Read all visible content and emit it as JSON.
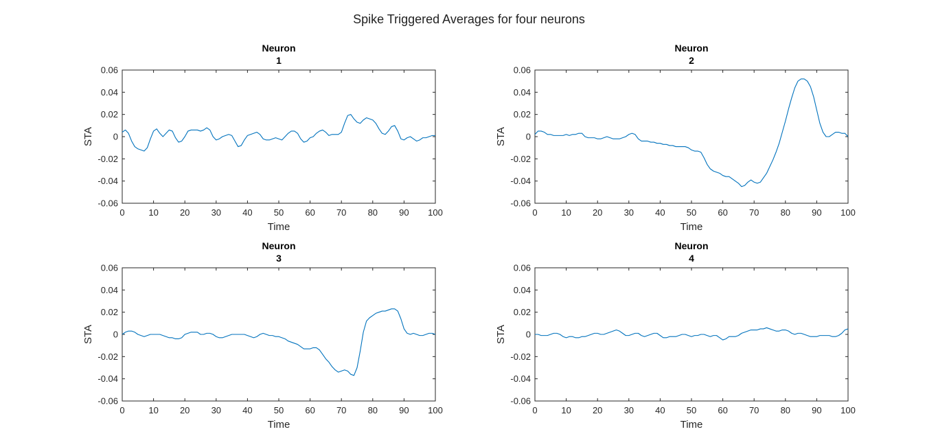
{
  "figure": {
    "title": "Spike Triggered Averages for four neurons"
  },
  "colors": {
    "line": "#0072BD",
    "axis": "#262626",
    "text": "#262626",
    "background": "#ffffff"
  },
  "chart_data": [
    {
      "type": "line",
      "title": [
        "Neuron",
        "1"
      ],
      "xlabel": "Time",
      "ylabel": "STA",
      "xlim": [
        0,
        100
      ],
      "ylim": [
        -0.06,
        0.06
      ],
      "xticks": [
        0,
        10,
        20,
        30,
        40,
        50,
        60,
        70,
        80,
        90,
        100
      ],
      "yticks": [
        -0.06,
        -0.04,
        -0.02,
        0,
        0.02,
        0.04,
        0.06
      ],
      "ytick_labels": [
        "-0.06",
        "-0.04",
        "-0.02",
        "0",
        "0.02",
        "0.04",
        "0.06"
      ],
      "grid": false,
      "series": [
        {
          "x": [
            0,
            1,
            2,
            3,
            4,
            5,
            6,
            7,
            8,
            9,
            10,
            11,
            12,
            13,
            14,
            15,
            16,
            17,
            18,
            19,
            20,
            21,
            22,
            23,
            24,
            25,
            26,
            27,
            28,
            29,
            30,
            31,
            32,
            33,
            34,
            35,
            36,
            37,
            38,
            39,
            40,
            41,
            42,
            43,
            44,
            45,
            46,
            47,
            48,
            49,
            50,
            51,
            52,
            53,
            54,
            55,
            56,
            57,
            58,
            59,
            60,
            61,
            62,
            63,
            64,
            65,
            66,
            67,
            68,
            69,
            70,
            71,
            72,
            73,
            74,
            75,
            76,
            77,
            78,
            79,
            80,
            81,
            82,
            83,
            84,
            85,
            86,
            87,
            88,
            89,
            90,
            91,
            92,
            93,
            94,
            95,
            96,
            97,
            98,
            99,
            100
          ],
          "y": [
            0.004,
            0.006,
            0.003,
            -0.004,
            -0.009,
            -0.011,
            -0.012,
            -0.013,
            -0.01,
            -0.002,
            0.005,
            0.007,
            0.003,
            0.0,
            0.003,
            0.006,
            0.005,
            -0.001,
            -0.005,
            -0.004,
            0.0,
            0.005,
            0.006,
            0.006,
            0.006,
            0.005,
            0.006,
            0.008,
            0.006,
            0.0,
            -0.003,
            -0.002,
            0.0,
            0.001,
            0.002,
            0.001,
            -0.004,
            -0.009,
            -0.008,
            -0.003,
            0.001,
            0.002,
            0.003,
            0.004,
            0.002,
            -0.002,
            -0.003,
            -0.003,
            -0.002,
            -0.001,
            -0.002,
            -0.003,
            0.0,
            0.003,
            0.005,
            0.005,
            0.003,
            -0.002,
            -0.005,
            -0.004,
            -0.001,
            0.0,
            0.003,
            0.005,
            0.006,
            0.004,
            0.001,
            0.002,
            0.002,
            0.002,
            0.004,
            0.012,
            0.019,
            0.02,
            0.016,
            0.013,
            0.012,
            0.015,
            0.017,
            0.016,
            0.015,
            0.012,
            0.007,
            0.003,
            0.002,
            0.005,
            0.009,
            0.01,
            0.005,
            -0.002,
            -0.003,
            -0.001,
            0.0,
            -0.002,
            -0.004,
            -0.003,
            -0.001,
            -0.001,
            0.0,
            0.001,
            0.001
          ]
        }
      ]
    },
    {
      "type": "line",
      "title": [
        "Neuron",
        "2"
      ],
      "xlabel": "Time",
      "ylabel": "STA",
      "xlim": [
        0,
        100
      ],
      "ylim": [
        -0.06,
        0.06
      ],
      "xticks": [
        0,
        10,
        20,
        30,
        40,
        50,
        60,
        70,
        80,
        90,
        100
      ],
      "yticks": [
        -0.06,
        -0.04,
        -0.02,
        0,
        0.02,
        0.04,
        0.06
      ],
      "ytick_labels": [
        "-0.06",
        "-0.04",
        "-0.02",
        "0",
        "0.02",
        "0.04",
        "0.06"
      ],
      "grid": false,
      "series": [
        {
          "x": [
            0,
            1,
            2,
            3,
            4,
            5,
            6,
            7,
            8,
            9,
            10,
            11,
            12,
            13,
            14,
            15,
            16,
            17,
            18,
            19,
            20,
            21,
            22,
            23,
            24,
            25,
            26,
            27,
            28,
            29,
            30,
            31,
            32,
            33,
            34,
            35,
            36,
            37,
            38,
            39,
            40,
            41,
            42,
            43,
            44,
            45,
            46,
            47,
            48,
            49,
            50,
            51,
            52,
            53,
            54,
            55,
            56,
            57,
            58,
            59,
            60,
            61,
            62,
            63,
            64,
            65,
            66,
            67,
            68,
            69,
            70,
            71,
            72,
            73,
            74,
            75,
            76,
            77,
            78,
            79,
            80,
            81,
            82,
            83,
            84,
            85,
            86,
            87,
            88,
            89,
            90,
            91,
            92,
            93,
            94,
            95,
            96,
            97,
            98,
            99,
            100
          ],
          "y": [
            0.002,
            0.005,
            0.005,
            0.004,
            0.002,
            0.002,
            0.001,
            0.001,
            0.001,
            0.001,
            0.002,
            0.001,
            0.002,
            0.002,
            0.003,
            0.003,
            0.0,
            -0.001,
            -0.001,
            -0.001,
            -0.002,
            -0.002,
            -0.001,
            0.0,
            -0.001,
            -0.002,
            -0.002,
            -0.002,
            -0.001,
            0.0,
            0.002,
            0.003,
            0.002,
            -0.002,
            -0.004,
            -0.004,
            -0.004,
            -0.005,
            -0.005,
            -0.006,
            -0.006,
            -0.007,
            -0.007,
            -0.008,
            -0.008,
            -0.009,
            -0.009,
            -0.009,
            -0.009,
            -0.01,
            -0.012,
            -0.013,
            -0.013,
            -0.014,
            -0.019,
            -0.025,
            -0.029,
            -0.031,
            -0.032,
            -0.033,
            -0.035,
            -0.036,
            -0.036,
            -0.038,
            -0.04,
            -0.042,
            -0.045,
            -0.044,
            -0.041,
            -0.039,
            -0.041,
            -0.042,
            -0.041,
            -0.037,
            -0.033,
            -0.027,
            -0.021,
            -0.014,
            -0.006,
            0.004,
            0.014,
            0.025,
            0.035,
            0.044,
            0.05,
            0.052,
            0.052,
            0.05,
            0.045,
            0.036,
            0.024,
            0.012,
            0.004,
            0.0,
            0.0,
            0.002,
            0.004,
            0.004,
            0.003,
            0.003,
            0.0
          ]
        }
      ]
    },
    {
      "type": "line",
      "title": [
        "Neuron",
        "3"
      ],
      "xlabel": "Time",
      "ylabel": "STA",
      "xlim": [
        0,
        100
      ],
      "ylim": [
        -0.06,
        0.06
      ],
      "xticks": [
        0,
        10,
        20,
        30,
        40,
        50,
        60,
        70,
        80,
        90,
        100
      ],
      "yticks": [
        -0.06,
        -0.04,
        -0.02,
        0,
        0.02,
        0.04,
        0.06
      ],
      "ytick_labels": [
        "-0.06",
        "-0.04",
        "-0.02",
        "0",
        "0.02",
        "0.04",
        "0.06"
      ],
      "grid": false,
      "series": [
        {
          "x": [
            0,
            1,
            2,
            3,
            4,
            5,
            6,
            7,
            8,
            9,
            10,
            11,
            12,
            13,
            14,
            15,
            16,
            17,
            18,
            19,
            20,
            21,
            22,
            23,
            24,
            25,
            26,
            27,
            28,
            29,
            30,
            31,
            32,
            33,
            34,
            35,
            36,
            37,
            38,
            39,
            40,
            41,
            42,
            43,
            44,
            45,
            46,
            47,
            48,
            49,
            50,
            51,
            52,
            53,
            54,
            55,
            56,
            57,
            58,
            59,
            60,
            61,
            62,
            63,
            64,
            65,
            66,
            67,
            68,
            69,
            70,
            71,
            72,
            73,
            74,
            75,
            76,
            77,
            78,
            79,
            80,
            81,
            82,
            83,
            84,
            85,
            86,
            87,
            88,
            89,
            90,
            91,
            92,
            93,
            94,
            95,
            96,
            97,
            98,
            99,
            100
          ],
          "y": [
            0.0,
            0.002,
            0.003,
            0.003,
            0.002,
            0.0,
            -0.001,
            -0.002,
            -0.001,
            0.0,
            0.0,
            0.0,
            0.0,
            -0.001,
            -0.002,
            -0.003,
            -0.003,
            -0.004,
            -0.004,
            -0.003,
            0.0,
            0.001,
            0.002,
            0.002,
            0.002,
            0.0,
            0.0,
            0.001,
            0.001,
            0.0,
            -0.002,
            -0.003,
            -0.003,
            -0.002,
            -0.001,
            0.0,
            0.0,
            0.0,
            0.0,
            0.0,
            -0.001,
            -0.002,
            -0.003,
            -0.002,
            0.0,
            0.001,
            0.0,
            -0.001,
            -0.001,
            -0.002,
            -0.002,
            -0.003,
            -0.004,
            -0.006,
            -0.007,
            -0.008,
            -0.009,
            -0.011,
            -0.013,
            -0.013,
            -0.013,
            -0.012,
            -0.012,
            -0.014,
            -0.018,
            -0.022,
            -0.025,
            -0.029,
            -0.032,
            -0.034,
            -0.033,
            -0.032,
            -0.033,
            -0.036,
            -0.037,
            -0.03,
            -0.015,
            0.002,
            0.012,
            0.015,
            0.017,
            0.019,
            0.02,
            0.021,
            0.021,
            0.022,
            0.023,
            0.023,
            0.021,
            0.014,
            0.005,
            0.001,
            0.0,
            0.001,
            0.0,
            -0.001,
            -0.001,
            0.0,
            0.001,
            0.001,
            0.0
          ]
        }
      ]
    },
    {
      "type": "line",
      "title": [
        "Neuron",
        "4"
      ],
      "xlabel": "Time",
      "ylabel": "STA",
      "xlim": [
        0,
        100
      ],
      "ylim": [
        -0.06,
        0.06
      ],
      "xticks": [
        0,
        10,
        20,
        30,
        40,
        50,
        60,
        70,
        80,
        90,
        100
      ],
      "yticks": [
        -0.06,
        -0.04,
        -0.02,
        0,
        0.02,
        0.04,
        0.06
      ],
      "ytick_labels": [
        "-0.06",
        "-0.04",
        "-0.02",
        "0",
        "0.02",
        "0.04",
        "0.06"
      ],
      "grid": false,
      "series": [
        {
          "x": [
            0,
            1,
            2,
            3,
            4,
            5,
            6,
            7,
            8,
            9,
            10,
            11,
            12,
            13,
            14,
            15,
            16,
            17,
            18,
            19,
            20,
            21,
            22,
            23,
            24,
            25,
            26,
            27,
            28,
            29,
            30,
            31,
            32,
            33,
            34,
            35,
            36,
            37,
            38,
            39,
            40,
            41,
            42,
            43,
            44,
            45,
            46,
            47,
            48,
            49,
            50,
            51,
            52,
            53,
            54,
            55,
            56,
            57,
            58,
            59,
            60,
            61,
            62,
            63,
            64,
            65,
            66,
            67,
            68,
            69,
            70,
            71,
            72,
            73,
            74,
            75,
            76,
            77,
            78,
            79,
            80,
            81,
            82,
            83,
            84,
            85,
            86,
            87,
            88,
            89,
            90,
            91,
            92,
            93,
            94,
            95,
            96,
            97,
            98,
            99,
            100
          ],
          "y": [
            0.0,
            0.0,
            -0.001,
            -0.001,
            -0.001,
            0.0,
            0.001,
            0.001,
            0.0,
            -0.002,
            -0.003,
            -0.002,
            -0.002,
            -0.003,
            -0.003,
            -0.002,
            -0.002,
            -0.001,
            0.0,
            0.001,
            0.001,
            0.0,
            0.0,
            0.001,
            0.002,
            0.003,
            0.004,
            0.003,
            0.001,
            -0.001,
            -0.001,
            0.0,
            0.001,
            0.001,
            -0.001,
            -0.002,
            -0.001,
            0.0,
            0.001,
            0.001,
            -0.001,
            -0.003,
            -0.003,
            -0.002,
            -0.002,
            -0.002,
            -0.001,
            0.0,
            0.0,
            -0.001,
            -0.002,
            -0.001,
            -0.001,
            0.0,
            0.0,
            -0.001,
            -0.002,
            -0.001,
            -0.001,
            -0.003,
            -0.005,
            -0.004,
            -0.002,
            -0.002,
            -0.002,
            -0.001,
            0.001,
            0.002,
            0.003,
            0.004,
            0.004,
            0.004,
            0.005,
            0.005,
            0.006,
            0.005,
            0.004,
            0.003,
            0.003,
            0.004,
            0.004,
            0.003,
            0.001,
            0.0,
            0.001,
            0.001,
            0.0,
            -0.001,
            -0.002,
            -0.002,
            -0.002,
            -0.001,
            -0.001,
            -0.001,
            -0.001,
            -0.002,
            -0.002,
            -0.001,
            0.001,
            0.004,
            0.005
          ]
        }
      ]
    }
  ]
}
